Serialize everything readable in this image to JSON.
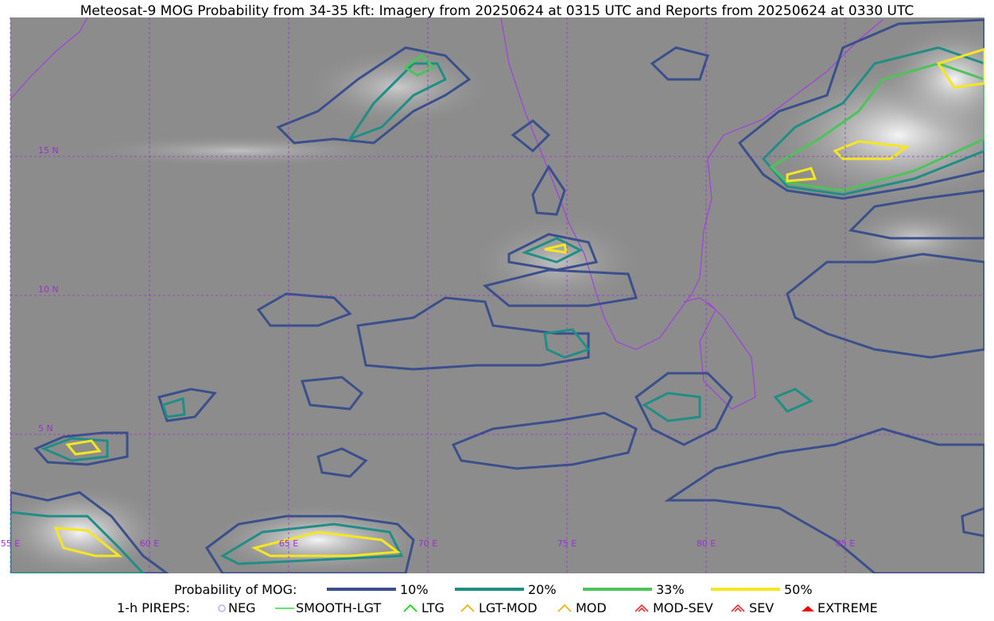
{
  "title": "Meteosat-9 MOG Probability from 34-35 kft: Imagery from 20250624 at 0315 UTC and Reports from 20250624 at 0330 UTC",
  "longitude_labels": [
    "55 E",
    "60 E",
    "65 E",
    "70 E",
    "75 E",
    "80 E",
    "85 E"
  ],
  "latitude_labels": [
    "15 N",
    "10 N",
    "5 N"
  ],
  "legend": {
    "probability_title": "Probability of MOG:",
    "probability_levels": [
      "10%",
      "20%",
      "33%",
      "50%"
    ],
    "pireps_title": "1-h PIREPS:",
    "pireps": [
      "NEG",
      "SMOOTH-LGT",
      "LTG",
      "LGT-MOD",
      "MOD",
      "MOD-SEV",
      "SEV",
      "EXTREME"
    ]
  }
}
